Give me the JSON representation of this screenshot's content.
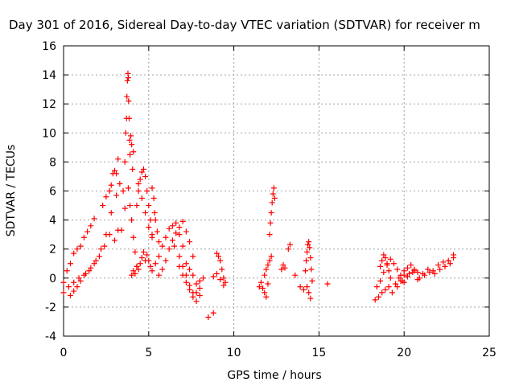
{
  "chart_data": {
    "type": "scatter",
    "title": "Day 301 of 2016, Sidereal Day-to-day VTEC variation (SDTVAR) for receiver m",
    "xlabel": "GPS time / hours",
    "ylabel": "SDTVAR / TECUs",
    "xlim": [
      0,
      25
    ],
    "ylim": [
      -4,
      16
    ],
    "xticks": [
      0,
      5,
      10,
      15,
      20,
      25
    ],
    "yticks": [
      -4,
      -2,
      0,
      2,
      4,
      6,
      8,
      10,
      12,
      14,
      16
    ],
    "grid": true,
    "marker": "+",
    "marker_color": "#ff0000",
    "series": [
      {
        "name": "SDTVAR",
        "segments": [
          {
            "x": [
              0.0,
              0.3,
              0.6,
              0.9,
              1.2,
              1.5,
              1.8,
              2.1,
              2.4,
              2.7,
              3.0,
              3.2
            ],
            "y": [
              -1.0,
              -0.6,
              -0.3,
              0.0,
              0.2,
              0.5,
              1.0,
              1.5,
              2.2,
              3.0,
              2.6,
              3.3
            ]
          },
          {
            "x": [
              0.0,
              0.2,
              0.4,
              0.6,
              0.8,
              1.0,
              1.2,
              1.4,
              1.6,
              1.8
            ],
            "y": [
              -0.3,
              0.5,
              1.0,
              1.7,
              2.0,
              2.2,
              2.8,
              3.2,
              3.6,
              4.1
            ]
          },
          {
            "x": [
              0.4,
              0.6,
              0.8,
              1.0,
              1.3,
              1.6,
              1.9,
              2.2,
              2.5,
              2.8,
              3.1,
              3.3
            ],
            "y": [
              -1.2,
              -0.9,
              -0.6,
              -0.2,
              0.3,
              0.7,
              1.2,
              2.0,
              3.0,
              4.5,
              5.7,
              6.5
            ]
          },
          {
            "x": [
              2.3,
              2.5,
              2.7,
              2.8,
              2.9,
              3.0,
              3.1,
              3.2
            ],
            "y": [
              5.0,
              5.6,
              6.0,
              6.4,
              7.2,
              7.4,
              7.2,
              8.2
            ]
          },
          {
            "x": [
              3.5,
              3.6,
              3.65,
              3.7,
              3.72,
              3.75,
              3.78,
              3.8,
              3.82,
              3.85,
              3.88,
              3.9,
              3.95,
              4.0,
              4.05,
              4.1
            ],
            "y": [
              6.0,
              8.0,
              10.0,
              11.0,
              12.5,
              13.6,
              14.1,
              13.8,
              12.2,
              11.0,
              9.5,
              8.5,
              9.8,
              9.2,
              7.5,
              8.7
            ]
          },
          {
            "x": [
              3.4,
              3.6,
              3.8,
              3.9,
              4.0,
              4.1,
              4.2,
              4.3
            ],
            "y": [
              3.3,
              4.8,
              6.2,
              5.0,
              4.0,
              2.8,
              1.8,
              0.8
            ]
          },
          {
            "x": [
              4.0,
              4.1,
              4.2,
              4.3,
              4.4,
              4.5,
              4.6,
              4.7,
              4.8,
              4.9,
              5.0,
              5.1
            ],
            "y": [
              0.2,
              0.5,
              0.3,
              0.8,
              0.6,
              1.0,
              1.4,
              1.8,
              1.2,
              1.6,
              1.2,
              0.8
            ]
          },
          {
            "x": [
              4.3,
              4.4,
              4.5,
              4.6,
              4.7,
              4.8,
              4.9,
              5.0,
              5.1,
              5.2
            ],
            "y": [
              5.0,
              6.0,
              6.8,
              7.3,
              7.5,
              7.0,
              6.0,
              5.0,
              4.0,
              3.0
            ]
          },
          {
            "x": [
              4.4,
              4.6,
              4.8,
              5.0,
              5.2
            ],
            "y": [
              6.5,
              5.5,
              4.5,
              3.5,
              2.8
            ]
          },
          {
            "x": [
              5.2,
              5.3,
              5.35,
              5.4,
              5.5,
              5.6
            ],
            "y": [
              6.2,
              5.5,
              4.5,
              4.0,
              3.2,
              2.5
            ]
          },
          {
            "x": [
              5.2,
              5.4,
              5.6,
              5.8,
              6.0,
              6.2,
              6.4,
              6.6,
              6.8,
              7.0,
              7.2,
              7.4,
              7.6
            ],
            "y": [
              0.5,
              1.0,
              1.5,
              2.2,
              2.8,
              3.4,
              3.6,
              3.8,
              3.5,
              3.9,
              3.2,
              2.5,
              1.5
            ]
          },
          {
            "x": [
              5.6,
              5.8,
              6.0,
              6.2,
              6.4,
              6.6,
              6.8,
              7.0
            ],
            "y": [
              0.2,
              0.6,
              1.2,
              2.0,
              2.6,
              3.1,
              3.0,
              2.2
            ]
          },
          {
            "x": [
              6.5,
              6.8,
              7.0,
              7.2,
              7.4,
              7.6,
              7.8,
              8.0,
              8.2
            ],
            "y": [
              2.2,
              1.5,
              0.8,
              0.2,
              -0.5,
              -1.0,
              -1.6,
              -0.7,
              0.0
            ]
          },
          {
            "x": [
              6.8,
              7.0,
              7.2,
              7.4,
              7.6,
              7.8,
              8.0
            ],
            "y": [
              0.8,
              0.2,
              -0.3,
              -0.8,
              -1.3,
              -1.0,
              -0.2
            ]
          },
          {
            "x": [
              7.2,
              7.4,
              7.6,
              7.8,
              8.0
            ],
            "y": [
              1.0,
              0.6,
              0.2,
              -0.4,
              -1.2
            ]
          },
          {
            "x": [
              8.5,
              8.8
            ],
            "y": [
              -2.7,
              -2.4
            ]
          },
          {
            "x": [
              9.0,
              9.1,
              9.2,
              9.3,
              9.4,
              9.5
            ],
            "y": [
              1.7,
              1.5,
              1.2,
              0.6,
              0.0,
              -0.3
            ]
          },
          {
            "x": [
              8.8,
              9.0,
              9.2,
              9.4
            ],
            "y": [
              0.1,
              0.3,
              -0.1,
              -0.5
            ]
          },
          {
            "x": [
              11.5,
              11.6,
              11.7,
              11.8,
              11.9,
              12.0
            ],
            "y": [
              -0.6,
              -0.3,
              -0.7,
              -1.0,
              -1.3,
              -0.4
            ]
          },
          {
            "x": [
              11.8,
              11.9,
              12.0,
              12.1,
              12.2
            ],
            "y": [
              0.2,
              0.6,
              0.9,
              1.2,
              1.5
            ]
          },
          {
            "x": [
              12.1,
              12.15,
              12.2,
              12.25,
              12.3,
              12.35,
              12.4
            ],
            "y": [
              3.0,
              3.8,
              4.5,
              5.2,
              5.8,
              6.2,
              5.5
            ]
          },
          {
            "x": [
              12.8,
              12.9,
              13.0,
              13.2,
              13.3
            ],
            "y": [
              0.6,
              0.9,
              0.7,
              2.0,
              2.3
            ]
          },
          {
            "x": [
              13.6,
              13.9,
              14.1
            ],
            "y": [
              0.2,
              -0.6,
              -0.8
            ]
          },
          {
            "x": [
              14.2,
              14.25,
              14.3,
              14.35,
              14.4,
              14.45,
              14.5,
              14.55,
              14.6
            ],
            "y": [
              0.5,
              1.2,
              1.8,
              2.3,
              2.5,
              2.1,
              1.4,
              0.6,
              -0.2
            ]
          },
          {
            "x": [
              14.3,
              14.4,
              14.5
            ],
            "y": [
              -0.6,
              -1.0,
              -1.4
            ]
          },
          {
            "x": [
              15.5
            ],
            "y": [
              -0.4
            ]
          },
          {
            "x": [
              18.3,
              18.5,
              18.7,
              18.9,
              19.1,
              19.3,
              19.5,
              19.7,
              19.9
            ],
            "y": [
              -1.5,
              -1.3,
              -1.0,
              -0.8,
              -0.6,
              -1.0,
              -0.4,
              0.0,
              -0.2
            ]
          },
          {
            "x": [
              18.4,
              18.6,
              18.8,
              19.0,
              19.2,
              19.4,
              19.6,
              19.8,
              20.0
            ],
            "y": [
              -0.6,
              -0.2,
              0.4,
              0.9,
              1.3,
              1.0,
              0.6,
              0.2,
              -0.3
            ]
          },
          {
            "x": [
              18.6,
              18.7,
              18.8,
              18.9,
              19.0,
              19.1,
              19.2
            ],
            "y": [
              0.8,
              1.2,
              1.6,
              1.4,
              1.0,
              0.5,
              0.0
            ]
          },
          {
            "x": [
              19.6,
              19.8,
              20.0,
              20.3,
              20.6,
              20.9,
              21.2,
              21.5,
              21.8,
              22.1,
              22.4,
              22.7,
              22.9
            ],
            "y": [
              -0.6,
              -0.2,
              0.2,
              0.3,
              0.5,
              0.0,
              0.2,
              0.4,
              0.3,
              0.6,
              0.8,
              1.0,
              1.4
            ]
          },
          {
            "x": [
              20.2,
              20.5,
              20.8,
              21.1,
              21.4,
              21.7,
              22.0,
              22.3,
              22.6,
              22.9
            ],
            "y": [
              0.1,
              0.4,
              -0.1,
              0.3,
              0.6,
              0.5,
              0.9,
              1.1,
              1.2,
              1.6
            ]
          },
          {
            "x": [
              20.0,
              20.2,
              20.4,
              20.6,
              20.8
            ],
            "y": [
              0.5,
              0.7,
              0.9,
              0.6,
              0.4
            ]
          }
        ]
      }
    ]
  }
}
